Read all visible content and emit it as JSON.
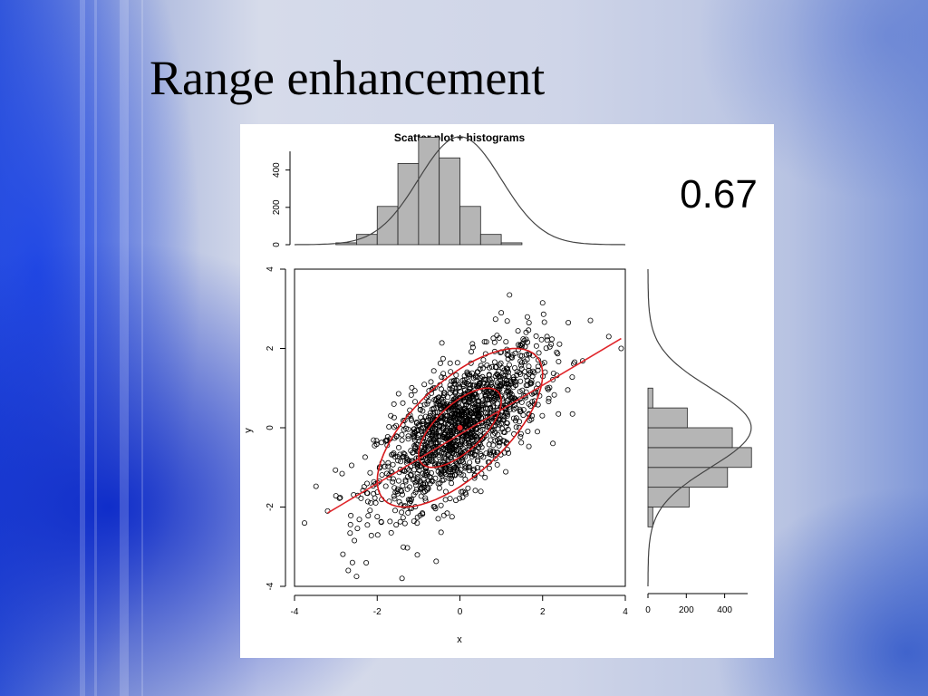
{
  "slide": {
    "title": "Range enhancement"
  },
  "colors": {
    "bar_fill": "#b5b5b5",
    "bar_stroke": "#222222",
    "density_curve": "#444444",
    "regression_line": "#e0262b",
    "ellipse": "#d7191c",
    "points": "#000000"
  },
  "chart_data": {
    "type": "scatter",
    "title": "Scatter plot + histograms",
    "annotation": "0.67",
    "xlabel": "x",
    "ylabel": "y",
    "xlim": [
      -4,
      4
    ],
    "ylim": [
      -4,
      4
    ],
    "x_ticks": [
      -4,
      -2,
      0,
      2,
      4
    ],
    "y_ticks": [
      -4,
      -2,
      0,
      2,
      4
    ],
    "correlation": 0.67,
    "scatter": {
      "n_points_approx": 2000,
      "mean": [
        0,
        0
      ],
      "sd": [
        1,
        1
      ],
      "notable_points": [
        [
          -1.4,
          -3.8
        ],
        [
          -2.7,
          -3.6
        ],
        [
          -2.5,
          -3.75
        ],
        [
          -2.6,
          -3.4
        ],
        [
          1.2,
          3.35
        ],
        [
          1.0,
          2.9
        ],
        [
          2.0,
          3.15
        ],
        [
          3.9,
          2.0
        ],
        [
          3.6,
          2.3
        ],
        [
          -3.2,
          -2.1
        ]
      ]
    },
    "regression_line": {
      "x": [
        -3.2,
        3.9
      ],
      "y": [
        -2.15,
        2.25
      ]
    },
    "ellipses": [
      {
        "level": "inner",
        "center": [
          0,
          0
        ],
        "extent_x": [
          -1.0,
          1.0
        ],
        "extent_y": [
          -0.9,
          1.0
        ]
      },
      {
        "level": "outer",
        "center": [
          0,
          0
        ],
        "extent_x": [
          -2.0,
          2.0
        ],
        "extent_y": [
          -1.95,
          2.0
        ]
      }
    ],
    "top_histogram": {
      "bin_edges": [
        -3.0,
        -2.5,
        -2.0,
        -1.5,
        -1.0,
        -0.5,
        0.0,
        0.5,
        1.0,
        1.5,
        2.0,
        2.5,
        3.0
      ],
      "counts": [
        10,
        55,
        205,
        435,
        575,
        465,
        205,
        55,
        10,
        0,
        0,
        0
      ],
      "y_ticks": [
        0,
        200,
        400
      ],
      "ylim": [
        0,
        500
      ]
    },
    "right_histogram": {
      "bin_edges": [
        -2.5,
        -2.0,
        -1.5,
        -1.0,
        -0.5,
        0.0,
        0.5,
        1.0,
        1.5,
        2.0
      ],
      "counts": [
        25,
        215,
        415,
        540,
        440,
        205,
        25,
        0,
        0
      ],
      "x_ticks": [
        0,
        200,
        400
      ],
      "xlim": [
        0,
        520
      ]
    }
  }
}
